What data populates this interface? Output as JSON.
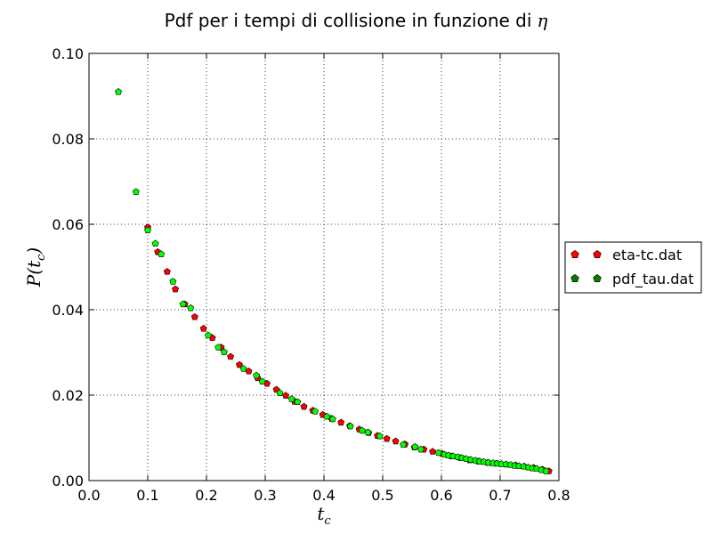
{
  "chart_data": {
    "type": "scatter",
    "title": "Pdf per i tempi di collisione in funzione di η",
    "title_main": "Pdf per i tempi di collisione in funzione di",
    "title_symbol": "η",
    "xlabel": "t_c",
    "xlabel_main": "t",
    "xlabel_sub": "c",
    "ylabel": "P(t_c)",
    "ylabel_main": "P(t",
    "ylabel_sub": "c",
    "ylabel_close": ")",
    "xlim": [
      0.0,
      0.8
    ],
    "ylim": [
      0.0,
      0.1
    ],
    "xticks": [
      "0.0",
      "0.1",
      "0.2",
      "0.3",
      "0.4",
      "0.5",
      "0.6",
      "0.7",
      "0.8"
    ],
    "yticks": [
      "0.00",
      "0.02",
      "0.04",
      "0.06",
      "0.08",
      "0.10"
    ],
    "grid": true,
    "legend_position": "right",
    "series": [
      {
        "name": "eta-tc.dat",
        "color": "#ff0000",
        "x": [
          0.1,
          0.117,
          0.133,
          0.147,
          0.163,
          0.18,
          0.195,
          0.21,
          0.225,
          0.241,
          0.256,
          0.272,
          0.287,
          0.303,
          0.319,
          0.335,
          0.35,
          0.366,
          0.381,
          0.398,
          0.413,
          0.429,
          0.444,
          0.46,
          0.476,
          0.491,
          0.507,
          0.522,
          0.538,
          0.554,
          0.57,
          0.585,
          0.601,
          0.617,
          0.632,
          0.648,
          0.663,
          0.679,
          0.694,
          0.71,
          0.726,
          0.741,
          0.757,
          0.772,
          0.783
        ],
        "y": [
          0.0593,
          0.0535,
          0.0489,
          0.0448,
          0.0413,
          0.0383,
          0.0356,
          0.0334,
          0.0312,
          0.029,
          0.0271,
          0.0256,
          0.024,
          0.0227,
          0.0213,
          0.0199,
          0.0185,
          0.0173,
          0.0164,
          0.0154,
          0.0145,
          0.0136,
          0.0128,
          0.012,
          0.0112,
          0.0105,
          0.0098,
          0.0092,
          0.0085,
          0.0078,
          0.0073,
          0.0068,
          0.0063,
          0.0057,
          0.0053,
          0.0048,
          0.0045,
          0.0042,
          0.004,
          0.0038,
          0.0036,
          0.0033,
          0.003,
          0.0026,
          0.0022
        ]
      },
      {
        "name": "pdf_tau.dat",
        "color": "#00ff00",
        "x": [
          0.05,
          0.08,
          0.1,
          0.113,
          0.123,
          0.143,
          0.16,
          0.173,
          0.203,
          0.22,
          0.23,
          0.263,
          0.285,
          0.295,
          0.325,
          0.345,
          0.355,
          0.385,
          0.405,
          0.415,
          0.445,
          0.465,
          0.475,
          0.495,
          0.535,
          0.555,
          0.565,
          0.595,
          0.605,
          0.612,
          0.62,
          0.628,
          0.635,
          0.642,
          0.65,
          0.658,
          0.665,
          0.672,
          0.68,
          0.688,
          0.695,
          0.702,
          0.71,
          0.718,
          0.725,
          0.732,
          0.74,
          0.748,
          0.755,
          0.762,
          0.77,
          0.778
        ],
        "y": [
          0.091,
          0.0676,
          0.0586,
          0.0555,
          0.053,
          0.0466,
          0.0413,
          0.0404,
          0.034,
          0.0312,
          0.0301,
          0.0262,
          0.0246,
          0.0232,
          0.0205,
          0.0191,
          0.0184,
          0.0162,
          0.015,
          0.0144,
          0.0127,
          0.0117,
          0.0113,
          0.0104,
          0.0084,
          0.0079,
          0.0073,
          0.0065,
          0.0061,
          0.0059,
          0.0057,
          0.0055,
          0.0053,
          0.0051,
          0.0049,
          0.0047,
          0.0045,
          0.0044,
          0.0042,
          0.0041,
          0.004,
          0.0039,
          0.0038,
          0.0037,
          0.0035,
          0.0034,
          0.0033,
          0.0031,
          0.0029,
          0.0028,
          0.0025,
          0.0022
        ]
      }
    ]
  }
}
